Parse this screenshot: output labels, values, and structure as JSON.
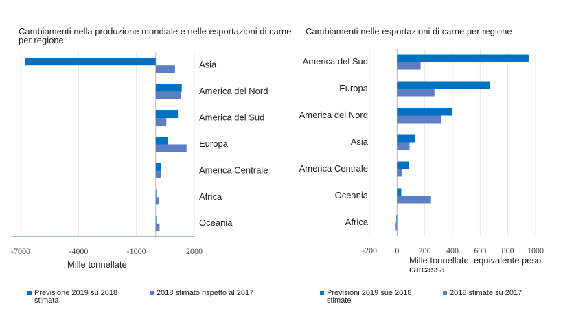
{
  "chart_data": [
    {
      "type": "bar",
      "orientation": "horizontal",
      "title": "Cambiamenti nella produzione mondiale e nelle esportazioni di carne per regione",
      "x_label": "Mille tonnellate",
      "categories": [
        "Asia",
        "America del Nord",
        "America del Sud",
        "Europa",
        "America Centrale",
        "Africa",
        "Oceania"
      ],
      "series": [
        {
          "name": "Previsione 2019 su 2018 stimata",
          "color": "#0070c0",
          "values": [
            -6750,
            1350,
            1150,
            650,
            280,
            30,
            0
          ]
        },
        {
          "name": "2018 stimato rispetto al 2017",
          "color": "#5a7fc4",
          "values": [
            1000,
            1300,
            550,
            1600,
            280,
            180,
            200
          ]
        }
      ],
      "xlim": [
        -7000,
        2000
      ],
      "xticks": [
        -7000,
        -4000,
        -1000,
        2000
      ],
      "grid": true,
      "legend": "bottom"
    },
    {
      "type": "bar",
      "orientation": "horizontal",
      "title": "Cambiamenti nelle esportazioni di carne per regione",
      "x_label": "Mille tonnellate, equivalente peso carcassa",
      "categories": [
        "America del Sud",
        "Europa",
        "America del Nord",
        "Asia",
        "America Centrale",
        "Oceania",
        "Africa"
      ],
      "series": [
        {
          "name": "Previsioni 2019 sue 2018 stimate",
          "color": "#0070c0",
          "values": [
            950,
            670,
            400,
            130,
            85,
            30,
            -5
          ]
        },
        {
          "name": "2018 stimate su 2017",
          "color": "#5a7fc4",
          "values": [
            170,
            270,
            320,
            90,
            35,
            245,
            -10
          ]
        }
      ],
      "xlim": [
        -200,
        1000
      ],
      "xticks": [
        -200,
        0,
        200,
        400,
        600,
        800,
        1000
      ],
      "grid": true,
      "legend": "bottom"
    }
  ]
}
